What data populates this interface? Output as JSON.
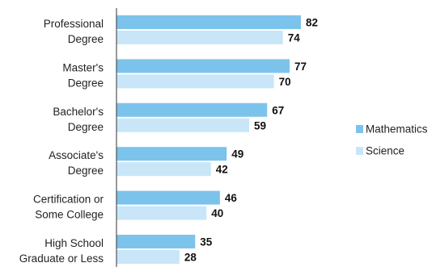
{
  "chart_data": {
    "type": "bar",
    "orientation": "horizontal",
    "categories": [
      [
        "Professional",
        "Degree"
      ],
      [
        "Master's",
        "Degree"
      ],
      [
        "Bachelor's",
        "Degree"
      ],
      [
        "Associate's",
        "Degree"
      ],
      [
        "Certification or",
        "Some College"
      ],
      [
        "High School",
        "Graduate or Less"
      ]
    ],
    "series": [
      {
        "name": "Mathematics",
        "values": [
          82,
          77,
          67,
          49,
          46,
          35
        ],
        "color": "#7cc3ec"
      },
      {
        "name": "Science",
        "values": [
          74,
          70,
          59,
          42,
          40,
          28
        ],
        "color": "#c8e6f8"
      }
    ],
    "xlim": [
      0,
      100
    ],
    "grid": false,
    "legend": "right",
    "title": "",
    "xlabel": "",
    "ylabel": ""
  }
}
